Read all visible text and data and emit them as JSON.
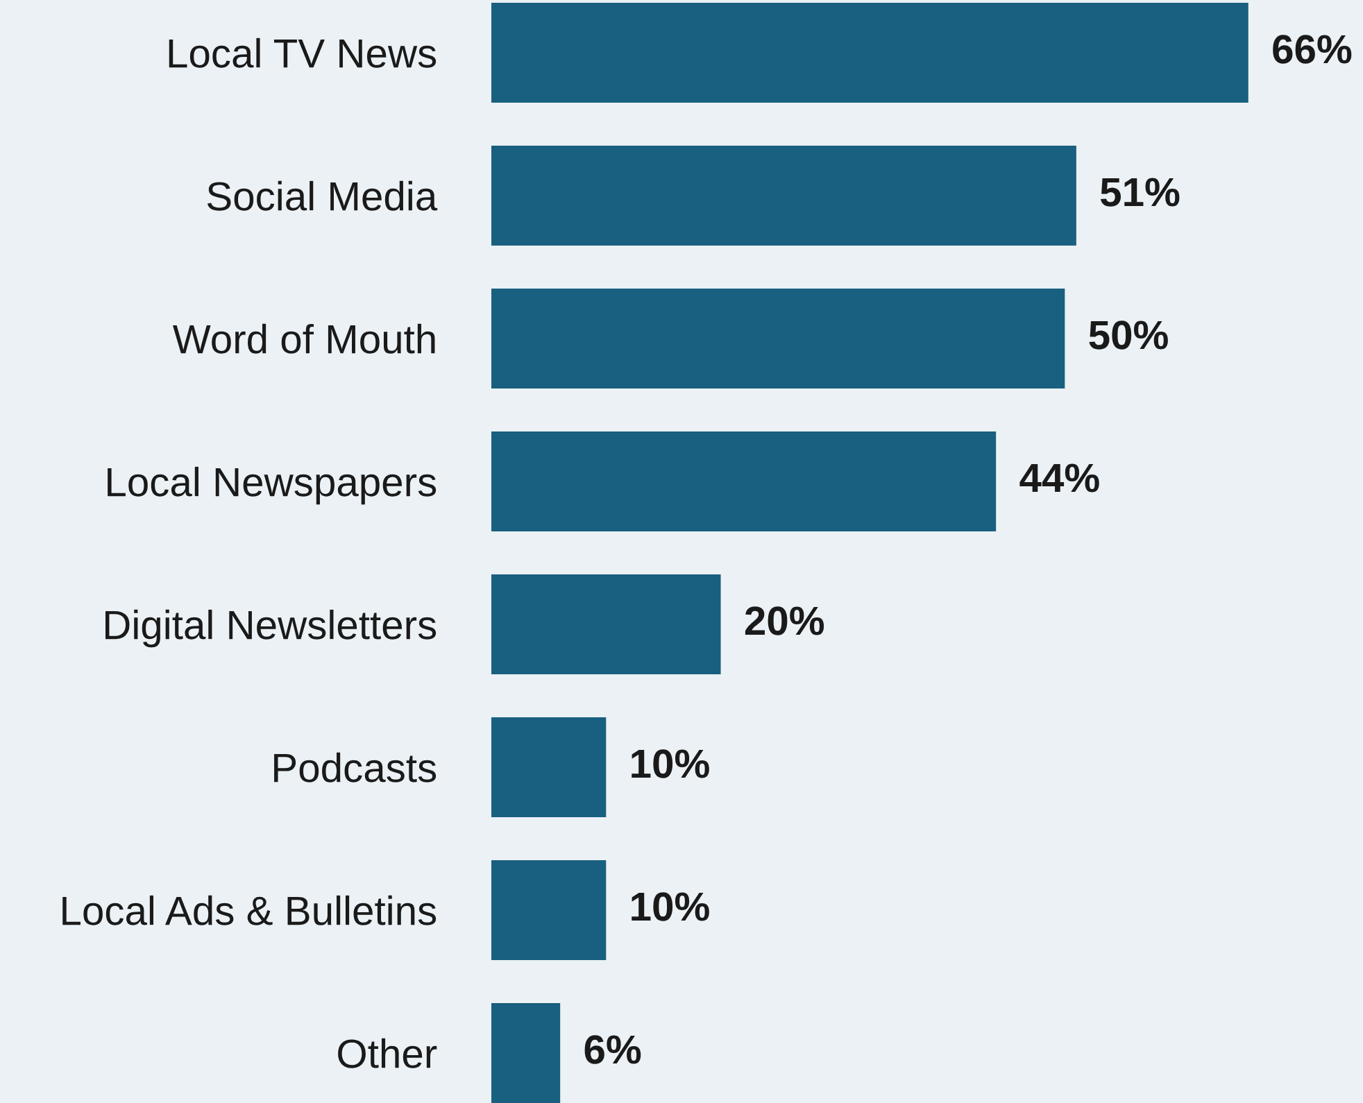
{
  "chart_data": {
    "type": "bar",
    "orientation": "horizontal",
    "categories": [
      "Local TV News",
      "Social Media",
      "Word of Mouth",
      "Local Newspapers",
      "Digital Newsletters",
      "Podcasts",
      "Local Ads & Bulletins",
      "Other"
    ],
    "values": [
      66,
      51,
      50,
      44,
      20,
      10,
      10,
      6
    ],
    "value_labels": [
      "66%",
      "51%",
      "50%",
      "44%",
      "20%",
      "10%",
      "10%",
      "6%"
    ],
    "color": "#185f80",
    "xlim": [
      0,
      76
    ],
    "tick_labels": "y",
    "grid": false,
    "legend": false
  }
}
